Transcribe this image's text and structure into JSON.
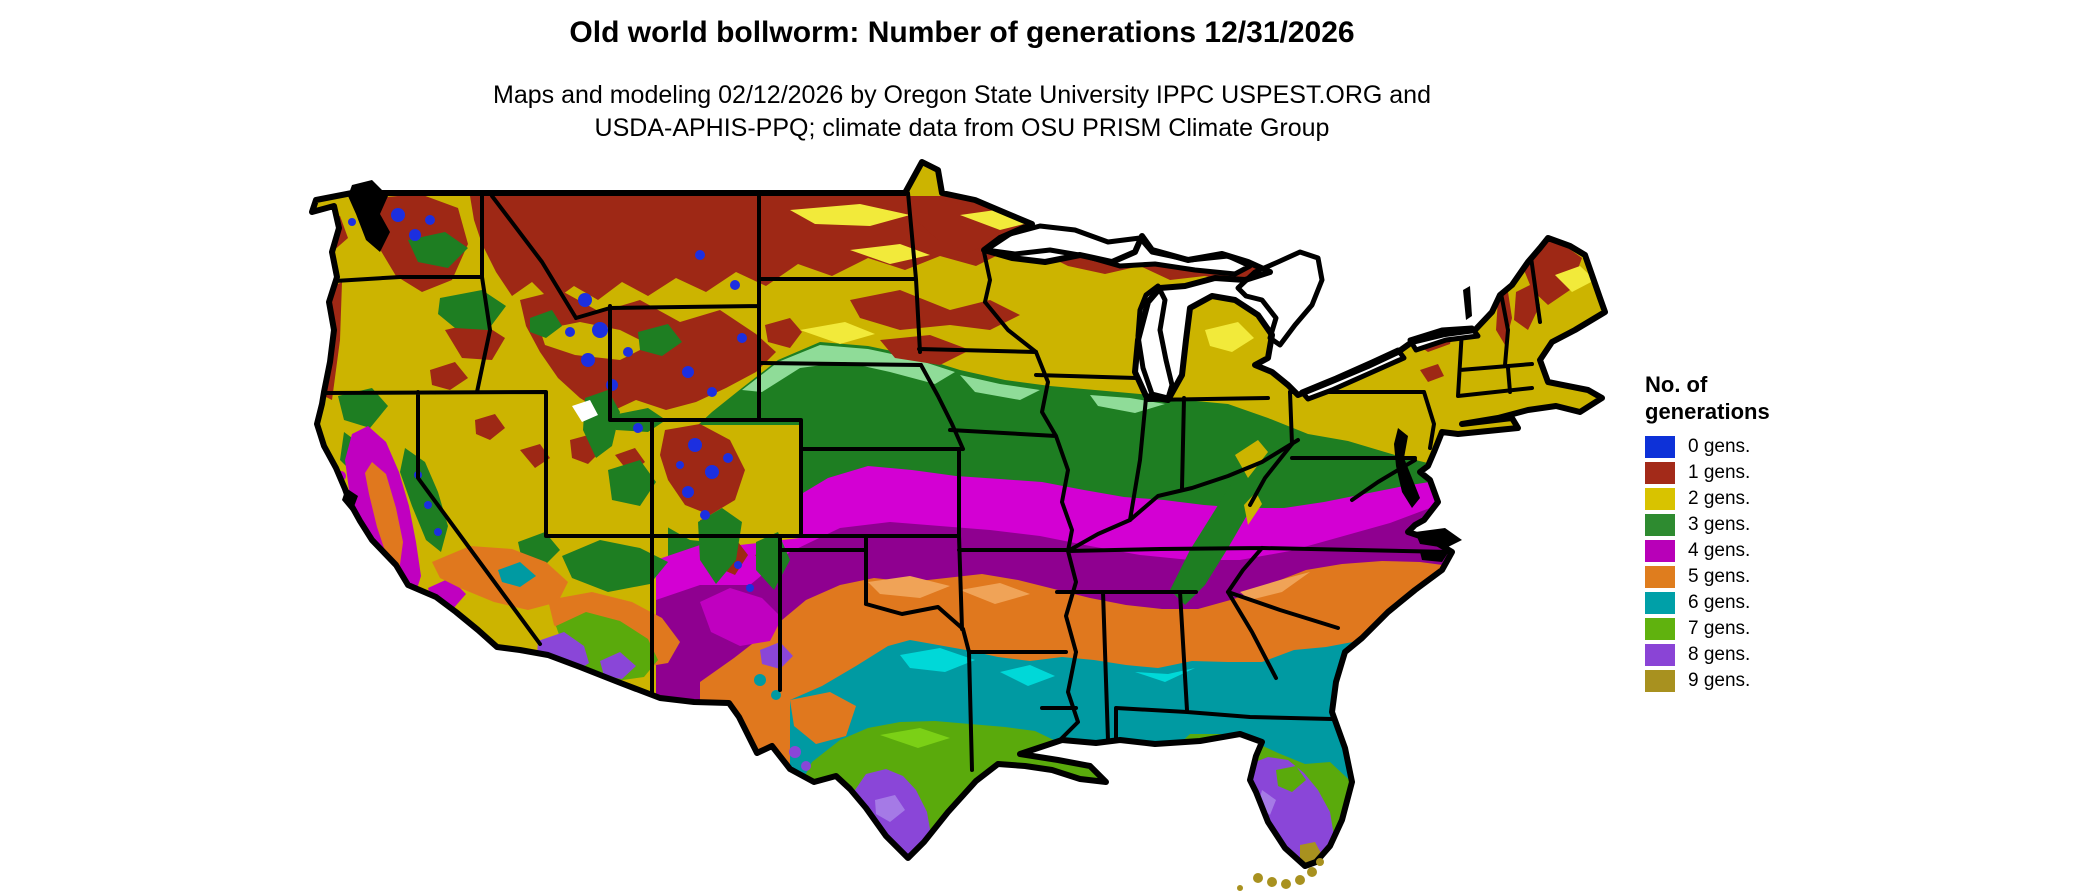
{
  "header": {
    "title": "Old world bollworm: Number of generations 12/31/2026",
    "subtitle_line1": "Maps and modeling 02/12/2026 by Oregon State University IPPC USPEST.ORG and",
    "subtitle_line2": "USDA-APHIS-PPQ; climate data from OSU PRISM Climate Group"
  },
  "legend": {
    "title_line1": "No. of",
    "title_line2": "generations",
    "items": [
      {
        "label": "0 gens.",
        "color": "#0d31d8"
      },
      {
        "label": "1 gens.",
        "color": "#a32a19"
      },
      {
        "label": "2 gens.",
        "color": "#d8c300"
      },
      {
        "label": "3 gens.",
        "color": "#2e8b30"
      },
      {
        "label": "4 gens.",
        "color": "#b800b8"
      },
      {
        "label": "5 gens.",
        "color": "#df7d1e"
      },
      {
        "label": "6 gens.",
        "color": "#00a0a8"
      },
      {
        "label": "7 gens.",
        "color": "#60b20e"
      },
      {
        "label": "8 gens.",
        "color": "#8a44d6"
      },
      {
        "label": "9 gens.",
        "color": "#a8911f"
      }
    ]
  }
}
